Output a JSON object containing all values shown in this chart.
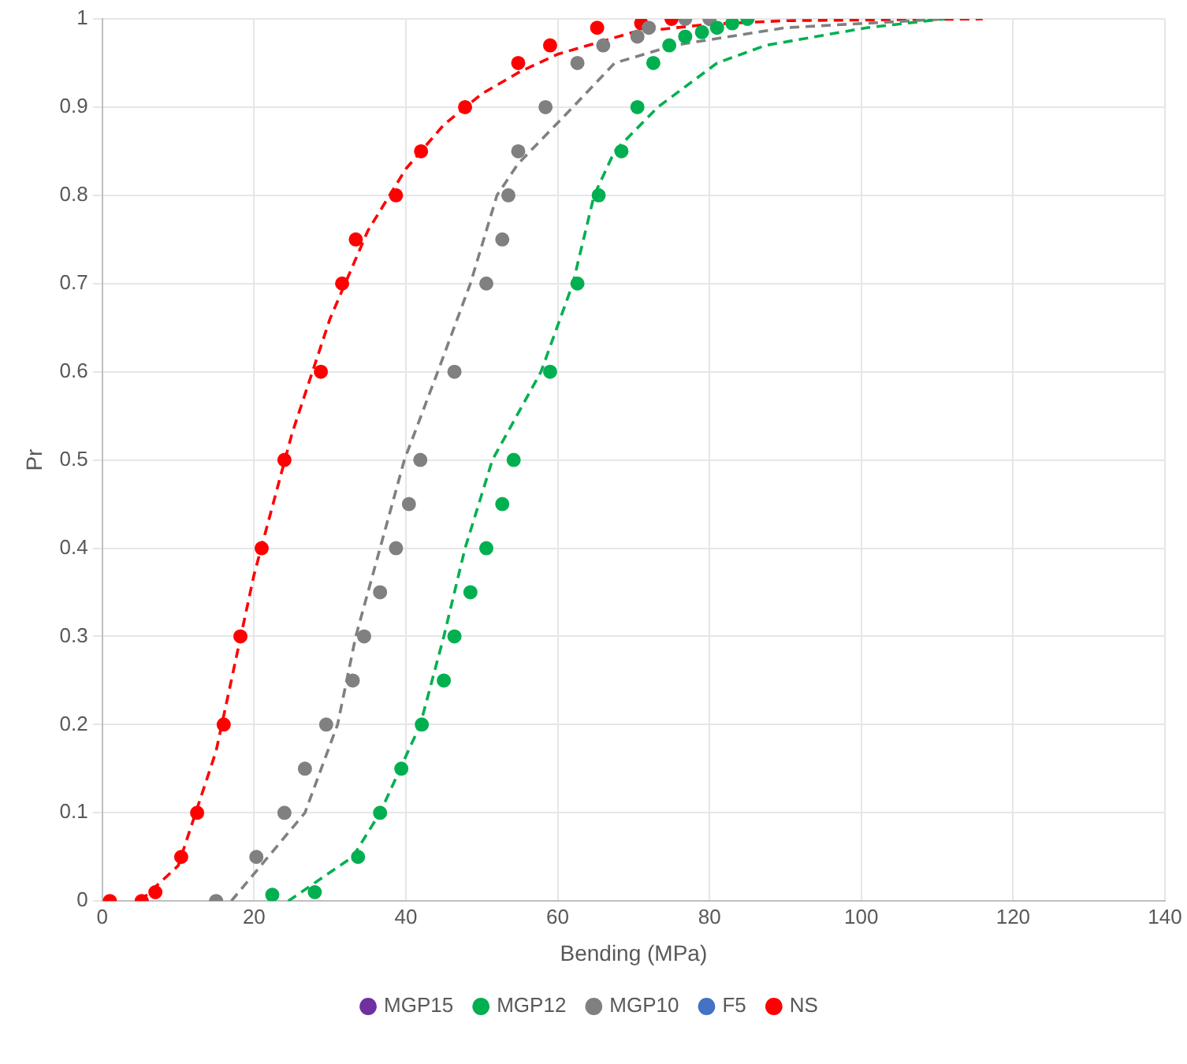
{
  "chart_data": {
    "type": "scatter",
    "xlabel": "Bending (MPa)",
    "ylabel": "Pr",
    "xlim": [
      0,
      140
    ],
    "xticks": [
      0,
      20,
      40,
      60,
      80,
      100,
      120,
      140
    ],
    "ylim": [
      0,
      1
    ],
    "yticks": [
      0,
      0.1,
      0.2,
      0.3,
      0.4,
      0.5,
      0.6,
      0.7,
      0.8,
      0.9,
      1
    ],
    "grid": true,
    "legend": "bottom",
    "marker": "circle",
    "series": [
      {
        "name": "MGP15",
        "color": "#7030a0"
      },
      {
        "name": "MGP12",
        "color": "#00b050",
        "x": [
          22.4,
          28,
          33.7,
          36.6,
          39.4,
          42.1,
          45,
          46.4,
          48.5,
          50.6,
          52.7,
          54.2,
          59,
          62.6,
          65.4,
          68.4,
          70.5,
          72.6,
          74.7,
          76.8,
          79,
          81,
          83,
          85
        ],
        "values": [
          0.007,
          0.01,
          0.05,
          0.1,
          0.15,
          0.2,
          0.25,
          0.3,
          0.35,
          0.4,
          0.45,
          0.5,
          0.6,
          0.7,
          0.8,
          0.85,
          0.9,
          0.95,
          0.97,
          0.98,
          0.985,
          0.99,
          0.995,
          1
        ]
      },
      {
        "name": "MGP10",
        "color": "#808080",
        "x": [
          15,
          20.3,
          24,
          26.7,
          29.5,
          33,
          34.5,
          36.6,
          38.7,
          40.4,
          41.9,
          46.4,
          50.6,
          52.7,
          53.5,
          54.8,
          58.4,
          62.6,
          66,
          70.5,
          72,
          76.8,
          80
        ],
        "values": [
          0,
          0.05,
          0.1,
          0.15,
          0.2,
          0.25,
          0.3,
          0.35,
          0.4,
          0.45,
          0.5,
          0.6,
          0.7,
          0.75,
          0.8,
          0.85,
          0.9,
          0.95,
          0.97,
          0.98,
          0.99,
          1,
          1
        ]
      },
      {
        "name": "F5",
        "color": "#4472c4"
      },
      {
        "name": "NS",
        "color": "#ff0000",
        "x": [
          1,
          5.2,
          7,
          10.4,
          12.5,
          16,
          18.2,
          21,
          24,
          28.8,
          31.6,
          33.4,
          38.7,
          42,
          47.8,
          54.8,
          59,
          65.2,
          71,
          75
        ],
        "values": [
          0,
          0,
          0.01,
          0.05,
          0.1,
          0.2,
          0.3,
          0.4,
          0.5,
          0.6,
          0.7,
          0.75,
          0.8,
          0.85,
          0.9,
          0.95,
          0.97,
          0.99,
          0.995,
          1
        ]
      },
      {
        "type": "line",
        "color": "#00b050",
        "line_style": "dashed",
        "marker": "none",
        "x": [
          24.5,
          33,
          36.6,
          41.9,
          45,
          47.8,
          51.4,
          57.8,
          62,
          64.8,
          67.5,
          73.2,
          81,
          87.4,
          100.7,
          111
        ],
        "values": [
          0,
          0.05,
          0.1,
          0.2,
          0.3,
          0.4,
          0.5,
          0.6,
          0.7,
          0.8,
          0.85,
          0.9,
          0.95,
          0.97,
          0.99,
          1
        ]
      },
      {
        "type": "line",
        "color": "#808080",
        "line_style": "dashed",
        "marker": "none",
        "x": [
          17,
          26.7,
          31,
          33.4,
          36.6,
          39.8,
          44.2,
          48.5,
          52,
          54.8,
          62,
          67.5,
          75.3,
          90,
          111
        ],
        "values": [
          0,
          0.1,
          0.2,
          0.3,
          0.4,
          0.5,
          0.6,
          0.7,
          0.8,
          0.836,
          0.9,
          0.95,
          0.97,
          0.99,
          1
        ]
      },
      {
        "type": "line",
        "color": "#ff0000",
        "line_style": "dashed",
        "marker": "none",
        "x": [
          5,
          10,
          15,
          20,
          25,
          30,
          35,
          40,
          45,
          50,
          55,
          60,
          70,
          80,
          90,
          116
        ],
        "values": [
          0,
          0.04,
          0.17,
          0.37,
          0.53,
          0.66,
          0.76,
          0.83,
          0.88,
          0.915,
          0.94,
          0.96,
          0.985,
          0.994,
          0.998,
          1
        ]
      }
    ]
  }
}
